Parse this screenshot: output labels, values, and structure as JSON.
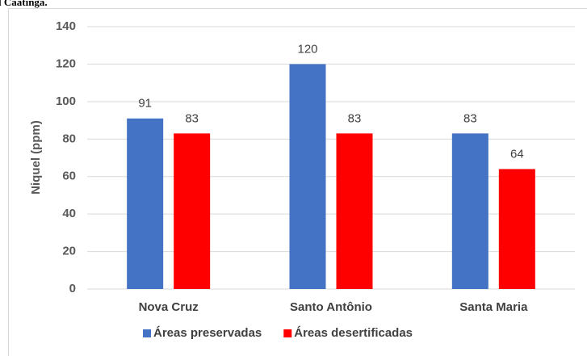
{
  "header_text": "l Caatinga.",
  "chart_data": {
    "type": "bar",
    "ylabel": "Niquel (ppm)",
    "categories": [
      "Nova Cruz",
      "Santo Antônio",
      "Santa Maria"
    ],
    "series": [
      {
        "name": "Áreas preservadas",
        "color": "#4472c4",
        "values": [
          91,
          120,
          83
        ]
      },
      {
        "name": "Áreas desertificadas",
        "color": "#ff0000",
        "values": [
          83,
          83,
          64
        ]
      }
    ],
    "ylim": [
      0,
      140
    ],
    "yticks": [
      0,
      20,
      40,
      60,
      80,
      100,
      120,
      140
    ],
    "grid": true,
    "legend": "bottom"
  }
}
